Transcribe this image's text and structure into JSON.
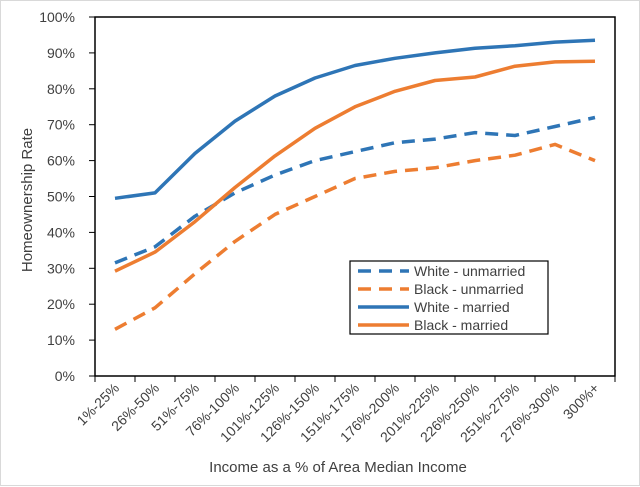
{
  "chart_data": {
    "type": "line",
    "title": "",
    "xlabel": "Income as a % of Area Median Income",
    "ylabel": "Homeownership Rate",
    "ylim": [
      0,
      100
    ],
    "yticks": [
      "0%",
      "10%",
      "20%",
      "30%",
      "40%",
      "50%",
      "60%",
      "70%",
      "80%",
      "90%",
      "100%"
    ],
    "grid": false,
    "legend_position": "bottom-right",
    "categories": [
      "1%-25%",
      "26%-50%",
      "51%-75%",
      "76%-100%",
      "101%-125%",
      "126%-150%",
      "151%-175%",
      "176%-200%",
      "201%-225%",
      "226%-250%",
      "251%-275%",
      "276%-300%",
      "300%+"
    ],
    "series": [
      {
        "name": "White - unmarried",
        "color": "#2e75b6",
        "dash": "dashed",
        "values": [
          31.5,
          36,
          44.5,
          51,
          56,
          60,
          62.5,
          65,
          66,
          67.8,
          67,
          69.5,
          72
        ]
      },
      {
        "name": "Black - unmarried",
        "color": "#ed7d31",
        "dash": "dashed",
        "values": [
          13,
          19,
          28.5,
          37.5,
          45,
          50,
          55,
          57,
          58,
          60,
          61.5,
          64.5,
          60
        ]
      },
      {
        "name": "White - married",
        "color": "#2e75b6",
        "dash": "solid",
        "values": [
          49.5,
          51,
          62,
          71,
          78,
          83,
          86.5,
          88.5,
          90,
          91.3,
          92,
          93,
          93.5
        ]
      },
      {
        "name": "Black - married",
        "color": "#ed7d31",
        "dash": "solid",
        "values": [
          29.2,
          34.5,
          43,
          52.5,
          61.3,
          69,
          75,
          79.3,
          82.3,
          83.3,
          86.3,
          87.5,
          87.7
        ]
      }
    ]
  }
}
